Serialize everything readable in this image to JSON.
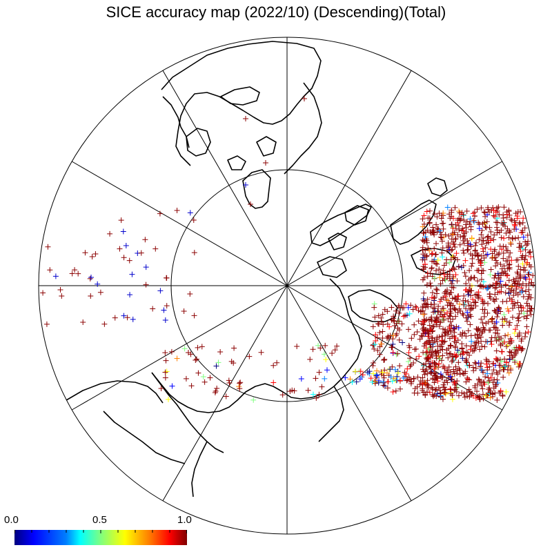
{
  "title": "SICE accuracy map (2022/10) (Descending)(Total)",
  "projection": "north-polar-stereographic",
  "graticule": {
    "meridian_step_deg": 30,
    "inner_circle_latitude_deg": 60
  },
  "colorbar": {
    "min_label": "0.0",
    "mid_label": "0.5",
    "max_label": "1.0",
    "min": 0.0,
    "max": 1.0,
    "colormap": "jet",
    "colors": [
      "#00007f",
      "#0000ff",
      "#007fff",
      "#00ffff",
      "#7fff7f",
      "#ffff00",
      "#ff7f00",
      "#ff0000",
      "#7f0000"
    ]
  },
  "marker": {
    "symbol": "+",
    "dominant_color": "#8b0000"
  },
  "coastline_color": "#000000"
}
